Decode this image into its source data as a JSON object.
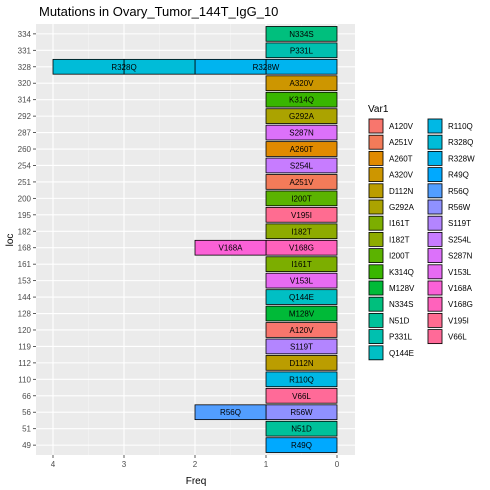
{
  "chart_data": {
    "type": "bar",
    "orientation": "horizontal",
    "stacked": true,
    "x_reversed": true,
    "title": "Mutations in Ovary_Tumor_144T_IgG_10",
    "xlabel": "Freq",
    "ylabel": "loc",
    "xlim": [
      0,
      4
    ],
    "x_ticks": [
      4,
      3,
      2,
      1,
      0
    ],
    "grid": true,
    "legend_position": "right",
    "legend_title": "Var1",
    "categories": [
      "49",
      "51",
      "56",
      "66",
      "110",
      "112",
      "119",
      "120",
      "128",
      "144",
      "153",
      "161",
      "168",
      "182",
      "195",
      "200",
      "251",
      "254",
      "260",
      "287",
      "292",
      "314",
      "320",
      "328",
      "331",
      "334"
    ],
    "segments": [
      {
        "loc": "334",
        "label": "N334S",
        "value": 1,
        "color": "#00BF7D"
      },
      {
        "loc": "331",
        "label": "P331L",
        "value": 1,
        "color": "#00C0AF"
      },
      {
        "loc": "328",
        "label": "R328W",
        "value": 1,
        "color": "#00B4EF"
      },
      {
        "loc": "328",
        "label": "R328W",
        "value": 1,
        "color": "#00B4EF"
      },
      {
        "loc": "328",
        "label": "R328Q",
        "value": 1,
        "color": "#00BCD8"
      },
      {
        "loc": "328",
        "label": "R328Q",
        "value": 1,
        "color": "#00BCD8"
      },
      {
        "loc": "320",
        "label": "A320V",
        "value": 1,
        "color": "#CD9600"
      },
      {
        "loc": "314",
        "label": "K314Q",
        "value": 1,
        "color": "#39B600"
      },
      {
        "loc": "292",
        "label": "G292A",
        "value": 1,
        "color": "#ABA300"
      },
      {
        "loc": "287",
        "label": "S287N",
        "value": 1,
        "color": "#DC71FA"
      },
      {
        "loc": "260",
        "label": "A260T",
        "value": 1,
        "color": "#E18A00"
      },
      {
        "loc": "254",
        "label": "S254L",
        "value": 1,
        "color": "#C77CFF"
      },
      {
        "loc": "251",
        "label": "A251V",
        "value": 1,
        "color": "#F37B59"
      },
      {
        "loc": "200",
        "label": "I200T",
        "value": 1,
        "color": "#5BB300"
      },
      {
        "loc": "195",
        "label": "V195I",
        "value": 1,
        "color": "#FF6C91"
      },
      {
        "loc": "182",
        "label": "I182T",
        "value": 1,
        "color": "#8EAB00"
      },
      {
        "loc": "168",
        "label": "V168G",
        "value": 1,
        "color": "#FF62BC"
      },
      {
        "loc": "168",
        "label": "V168A",
        "value": 1,
        "color": "#FB61D7"
      },
      {
        "loc": "161",
        "label": "I161T",
        "value": 1,
        "color": "#7CAE00"
      },
      {
        "loc": "153",
        "label": "V153L",
        "value": 1,
        "color": "#E76BF3"
      },
      {
        "loc": "144",
        "label": "Q144E",
        "value": 1,
        "color": "#00BFC4"
      },
      {
        "loc": "128",
        "label": "M128V",
        "value": 1,
        "color": "#00BA38"
      },
      {
        "loc": "120",
        "label": "A120V",
        "value": 1,
        "color": "#F8766D"
      },
      {
        "loc": "119",
        "label": "S119T",
        "value": 1,
        "color": "#B385FF"
      },
      {
        "loc": "112",
        "label": "D112N",
        "value": 1,
        "color": "#BB9D00"
      },
      {
        "loc": "110",
        "label": "R110Q",
        "value": 1,
        "color": "#00B8E5"
      },
      {
        "loc": "66",
        "label": "V66L",
        "value": 1,
        "color": "#FF6A98"
      },
      {
        "loc": "56",
        "label": "R56W",
        "value": 1,
        "color": "#8F91FF"
      },
      {
        "loc": "56",
        "label": "R56Q",
        "value": 1,
        "color": "#529EFF"
      },
      {
        "loc": "51",
        "label": "N51D",
        "value": 1,
        "color": "#00C19A"
      },
      {
        "loc": "49",
        "label": "R49Q",
        "value": 1,
        "color": "#00A9FF"
      }
    ],
    "legend": {
      "columns": [
        [
          {
            "label": "A120V",
            "color": "#F8766D"
          },
          {
            "label": "A251V",
            "color": "#F37B59"
          },
          {
            "label": "A260T",
            "color": "#E18A00"
          },
          {
            "label": "A320V",
            "color": "#CD9600"
          },
          {
            "label": "D112N",
            "color": "#BB9D00"
          },
          {
            "label": "G292A",
            "color": "#ABA300"
          },
          {
            "label": "I161T",
            "color": "#7CAE00"
          },
          {
            "label": "I182T",
            "color": "#8EAB00"
          },
          {
            "label": "I200T",
            "color": "#5BB300"
          },
          {
            "label": "K314Q",
            "color": "#39B600"
          },
          {
            "label": "M128V",
            "color": "#00BA38"
          },
          {
            "label": "N334S",
            "color": "#00BF7D"
          },
          {
            "label": "N51D",
            "color": "#00C19A"
          },
          {
            "label": "P331L",
            "color": "#00C0AF"
          },
          {
            "label": "Q144E",
            "color": "#00BFC4"
          }
        ],
        [
          {
            "label": "R110Q",
            "color": "#00B8E5"
          },
          {
            "label": "R328Q",
            "color": "#00BCD8"
          },
          {
            "label": "R328W",
            "color": "#00B4EF"
          },
          {
            "label": "R49Q",
            "color": "#00A9FF"
          },
          {
            "label": "R56Q",
            "color": "#529EFF"
          },
          {
            "label": "R56W",
            "color": "#8F91FF"
          },
          {
            "label": "S119T",
            "color": "#B385FF"
          },
          {
            "label": "S254L",
            "color": "#C77CFF"
          },
          {
            "label": "S287N",
            "color": "#DC71FA"
          },
          {
            "label": "V153L",
            "color": "#E76BF3"
          },
          {
            "label": "V168A",
            "color": "#FB61D7"
          },
          {
            "label": "V168G",
            "color": "#FF62BC"
          },
          {
            "label": "V195I",
            "color": "#FF6C91"
          },
          {
            "label": "V66L",
            "color": "#FF6A98"
          }
        ]
      ]
    }
  }
}
